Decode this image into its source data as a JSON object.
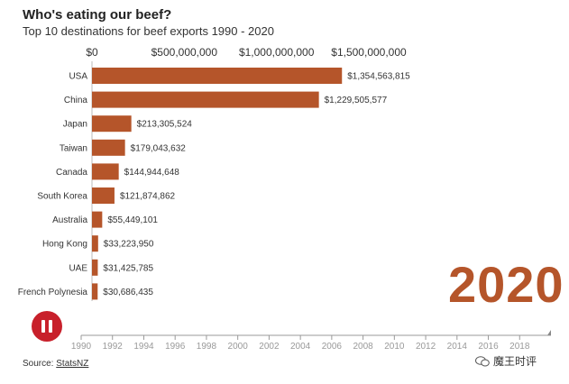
{
  "header": {
    "title": "Who's eating our beef?",
    "subtitle": "Top 10 destinations for beef exports 1990 - 2020"
  },
  "current_year": "2020",
  "source": {
    "label": "Source:",
    "link": "StatsNZ"
  },
  "watermark": {
    "text": "魔王时评",
    "icon": "wechat-icon"
  },
  "controls": {
    "play_state": "pause",
    "icon": "pause-icon"
  },
  "colors": {
    "bar": "#b5552a",
    "year": "#b5552a",
    "button": "#c8202b"
  },
  "chart_data": {
    "type": "bar",
    "orientation": "horizontal",
    "title": "Who's eating our beef?",
    "subtitle": "Top 10 destinations for beef exports 1990 - 2020",
    "categories": [
      "USA",
      "China",
      "Japan",
      "Taiwan",
      "Canada",
      "South Korea",
      "Australia",
      "Hong Kong",
      "UAE",
      "French Polynesia"
    ],
    "values": [
      1354563815,
      1229505577,
      213305524,
      179043632,
      144944648,
      121874862,
      55449101,
      33223950,
      31425785,
      30686435
    ],
    "value_labels": [
      "$1,354,563,815",
      "$1,229,505,577",
      "$213,305,524",
      "$179,043,632",
      "$144,944,648",
      "$121,874,862",
      "$55,449,101",
      "$33,223,950",
      "$31,425,785",
      "$30,686,435"
    ],
    "value_axis": {
      "position": "top",
      "ticks": [
        0,
        500000000,
        1000000000,
        1500000000
      ],
      "tick_labels": [
        "$0",
        "$500,000,000",
        "$1,000,000,000",
        "$1,500,000,000"
      ],
      "range": [
        0,
        1500000000
      ]
    },
    "timeline": {
      "range": [
        1990,
        2020
      ],
      "ticks": [
        1990,
        1992,
        1994,
        1996,
        1998,
        2000,
        2002,
        2004,
        2006,
        2008,
        2010,
        2012,
        2014,
        2016,
        2018
      ],
      "current": 2020
    },
    "grid": false,
    "legend": "none"
  }
}
